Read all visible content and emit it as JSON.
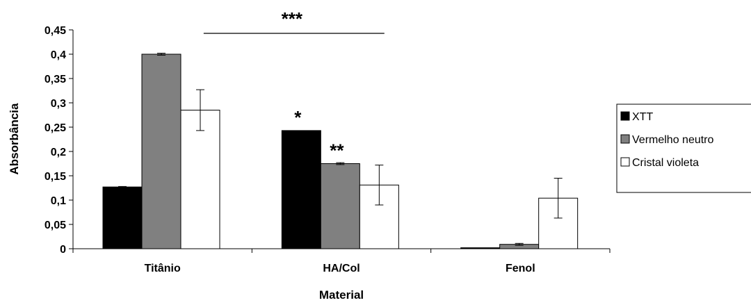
{
  "chart_data": {
    "type": "bar",
    "title": "",
    "xlabel": "Material",
    "ylabel": "Absorbância",
    "ylim": [
      0,
      0.45
    ],
    "yticks": [
      "0",
      "0,05",
      "0,1",
      "0,15",
      "0,2",
      "0,25",
      "0,3",
      "0,35",
      "0,4",
      "0,45"
    ],
    "categories": [
      "Titânio",
      "HA/Col",
      "Fenol"
    ],
    "series": [
      {
        "name": "XTT",
        "color": "#000000",
        "values": [
          0.127,
          0.243,
          0.002
        ],
        "errors": [
          0.001,
          0.0,
          0.0
        ]
      },
      {
        "name": "Vermelho neutro",
        "color": "#808080",
        "values": [
          0.4,
          0.175,
          0.009
        ],
        "errors": [
          0.002,
          0.002,
          0.002
        ]
      },
      {
        "name": "Cristal violeta",
        "color": "#ffffff",
        "values": [
          0.285,
          0.131,
          0.104
        ],
        "errors": [
          0.042,
          0.041,
          0.041
        ]
      }
    ],
    "annotations": [
      {
        "text": "***",
        "category_from": 0,
        "category_to": 1,
        "type": "bracket"
      },
      {
        "text": "*",
        "category": 1,
        "series": 0
      },
      {
        "text": "**",
        "category": 1,
        "series": 1
      }
    ],
    "legend": {
      "position": "right"
    },
    "grid": false
  }
}
